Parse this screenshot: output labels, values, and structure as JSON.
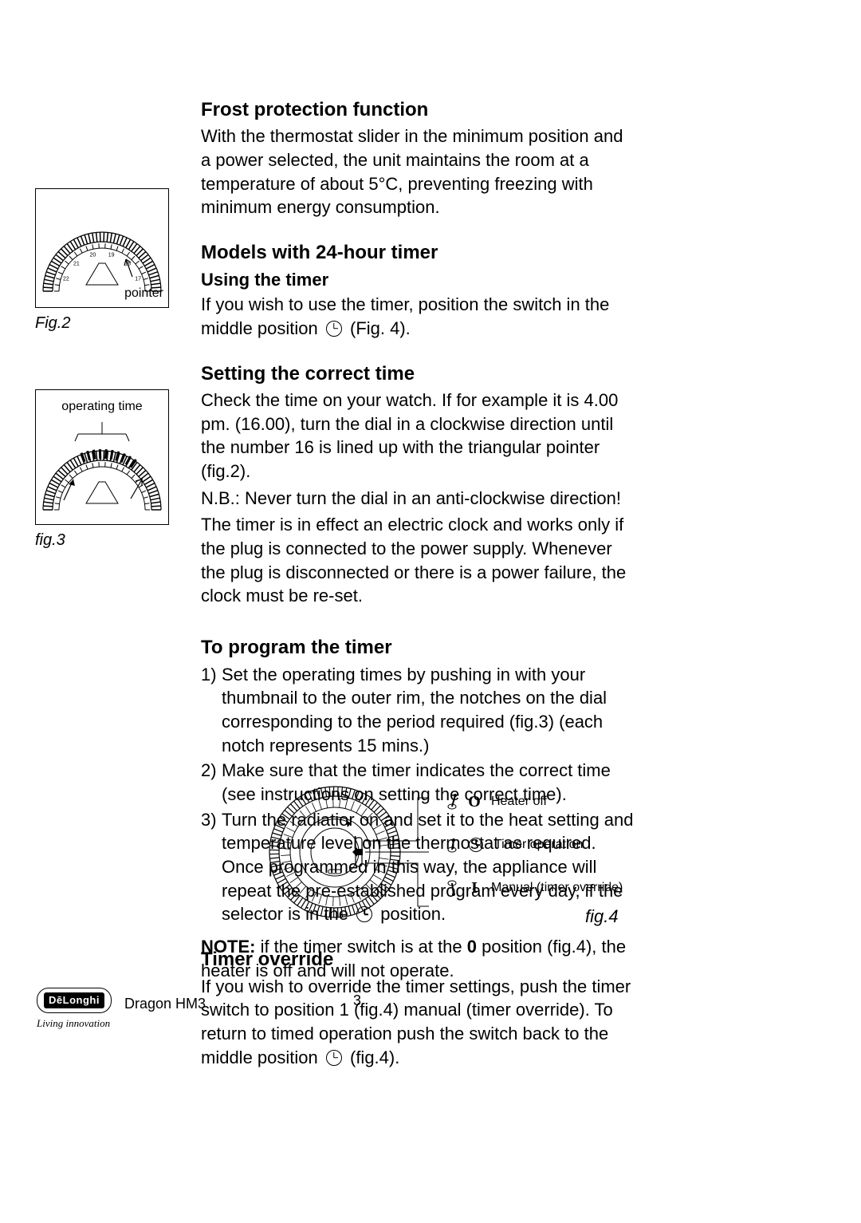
{
  "colors": {
    "text": "#000000",
    "bg": "#ffffff"
  },
  "typography": {
    "body_size": 22,
    "heading_size": 24,
    "sub_size": 22,
    "small_size": 16
  },
  "frost": {
    "heading": "Frost protection function",
    "body": "With the thermostat slider in the minimum position and a power selected, the unit maintains the room at a temperature of about 5°C, preventing freezing with minimum energy consumption."
  },
  "models24": {
    "heading": "Models with 24-hour timer",
    "sub": "Using the timer",
    "body_a": "If you wish to use the timer, position the switch in the middle position ",
    "body_b": " (Fig. 4)."
  },
  "setting": {
    "heading": "Setting the correct time",
    "p1": "Check the time on your watch. If for example it is 4.00 pm. (16.00), turn the dial in a clockwise direction until the number 16 is lined up with the triangular pointer (fig.2).",
    "p2": "N.B.: Never turn the dial in an anti-clockwise direction!",
    "p3": "The timer is in effect an electric clock and works only if the plug is connected to the power supply. Whenever the plug is disconnected or there is a power failure, the clock must be re-set."
  },
  "program": {
    "heading": "To program the timer",
    "items": [
      "Set the operating times by pushing in with your thumbnail to the outer rim, the notches on the dial corresponding to the period required (fig.3) (each notch represents 15 mins.)",
      "Make sure that the timer indicates the correct time (see instructions on setting the correct time).",
      "Turn the radiatior on and set it to the heat setting and temperature level on the thermostat as required."
    ],
    "tail_a": "Once programmed in this way, the appliance will repeat the pre-established program every day, if the selector is in the ",
    "tail_b": " position."
  },
  "override": {
    "heading": "Timer override",
    "body_a": "If you wish to override the timer settings, push the timer switch to position 1 (fig.4) manual (timer override). To return to timed operation push the switch back to the middle position ",
    "body_b": " (fig.4)."
  },
  "fig2": {
    "caption": "Fig.2",
    "pointer_label": "pointer",
    "tick_numbers": [
      "22",
      "21",
      "20",
      "19",
      "18",
      "17"
    ]
  },
  "fig3": {
    "caption": "fig.3",
    "operating_time": "operating time"
  },
  "fig4": {
    "caption": "fig.4",
    "rows": [
      {
        "glyph": "O",
        "label": "Heater off"
      },
      {
        "glyph": "clock",
        "label": "Timer operation"
      },
      {
        "glyph": "I",
        "label": "Manual (timer override)"
      }
    ]
  },
  "note": {
    "lead": "NOTE:",
    "body_a": " if the timer switch is at the ",
    "zero": "0",
    "body_b": " position (fig.4), the heater is off and will not operate."
  },
  "footer": {
    "brand": "DēLonghi",
    "tagline": "Living innovation",
    "model": "Dragon HM3",
    "page": "3"
  }
}
